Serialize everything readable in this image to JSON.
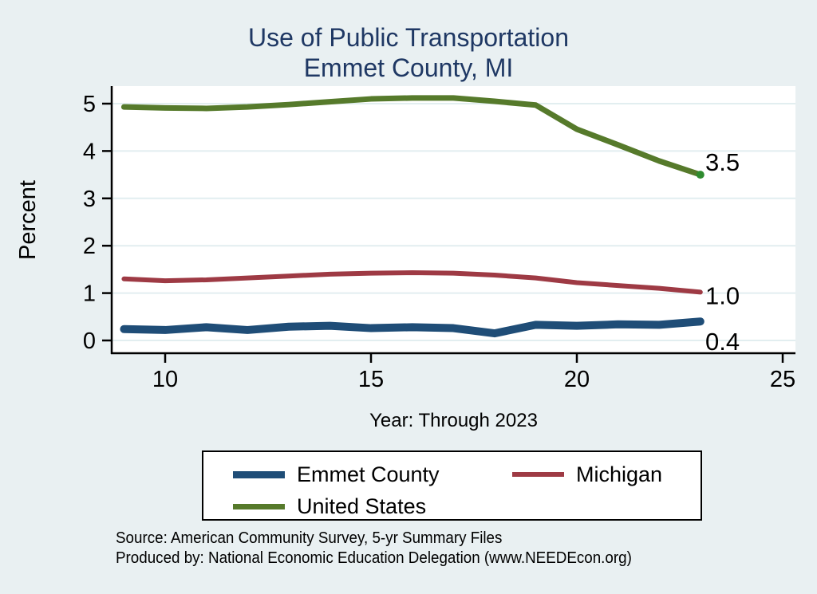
{
  "chart_data": {
    "type": "line",
    "title": "Use of Public Transportation",
    "subtitle": "Emmet County, MI",
    "ylabel": "Percent",
    "xlabel": "Year: Through 2023",
    "x": [
      9,
      10,
      11,
      12,
      13,
      14,
      15,
      16,
      17,
      18,
      19,
      20,
      21,
      22,
      23
    ],
    "x_tick_labels": [
      "10",
      "15",
      "20",
      "25"
    ],
    "x_ticks": [
      10,
      15,
      20,
      25
    ],
    "y_tick_labels": [
      "0",
      "1",
      "2",
      "3",
      "4",
      "5"
    ],
    "y_ticks": [
      0,
      1,
      2,
      3,
      4,
      5
    ],
    "xlim": [
      8.7,
      25.3
    ],
    "ylim": [
      -0.27,
      5.37
    ],
    "grid": true,
    "legend_position": "bottom",
    "series": [
      {
        "name": "Emmet County",
        "color": "#1f4d77",
        "line_width": 10,
        "values": [
          0.24,
          0.22,
          0.28,
          0.22,
          0.29,
          0.31,
          0.26,
          0.28,
          0.26,
          0.15,
          0.33,
          0.31,
          0.34,
          0.33,
          0.4
        ],
        "end_label": "0.4"
      },
      {
        "name": "Michigan",
        "color": "#9e3a44",
        "line_width": 6,
        "values": [
          1.3,
          1.26,
          1.28,
          1.32,
          1.36,
          1.4,
          1.42,
          1.43,
          1.42,
          1.38,
          1.32,
          1.22,
          1.16,
          1.1,
          1.02
        ],
        "end_label": "1.0"
      },
      {
        "name": "United States",
        "color": "#567a2b",
        "line_width": 7,
        "values": [
          4.93,
          4.91,
          4.9,
          4.93,
          4.98,
          5.04,
          5.1,
          5.12,
          5.12,
          5.05,
          4.97,
          4.46,
          4.13,
          3.79,
          3.5
        ],
        "end_label": "3.5",
        "end_marker_color": "#2e8b2e"
      }
    ],
    "source_line1": "Source: American Community Survey, 5-yr Summary Files",
    "source_line2": "Produced by: National Economic Education Delegation (www.NEEDEcon.org)",
    "colors": {
      "title": "#1f3864",
      "background": "#e9f0f2",
      "plot_background": "#ffffff",
      "gridline": "#e2eef0",
      "axis": "#000000"
    }
  }
}
